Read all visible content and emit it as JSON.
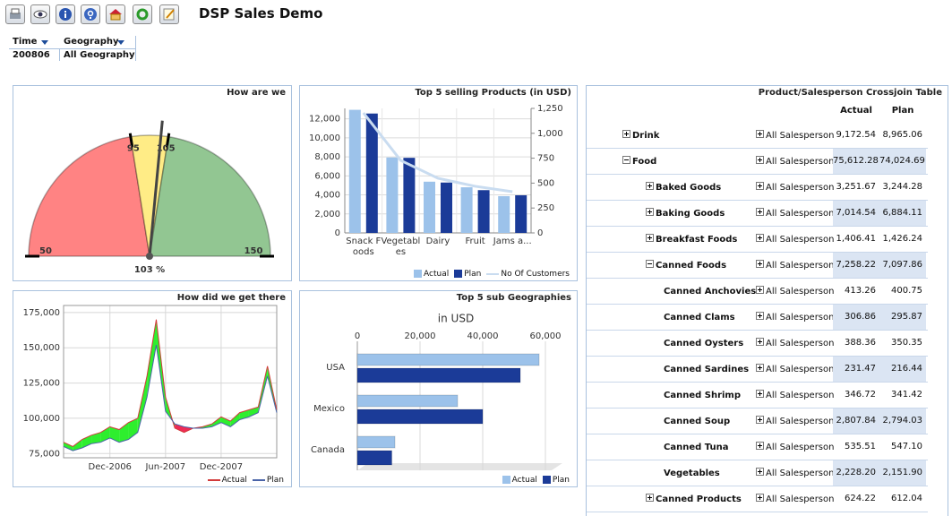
{
  "header": {
    "title": "DSP Sales Demo"
  },
  "filters": [
    {
      "label": "Time",
      "value": "200806"
    },
    {
      "label": "Geography",
      "value": "All Geography"
    }
  ],
  "chart_data": [
    {
      "type": "gauge",
      "title": "How are we",
      "range": [
        50,
        150
      ],
      "value": 103,
      "value_label": "103 %",
      "ticks": [
        50,
        95,
        105,
        150
      ],
      "bands": [
        {
          "from": 50,
          "to": 95,
          "color": "#ff8383"
        },
        {
          "from": 95,
          "to": 105,
          "color": "#ffec86"
        },
        {
          "from": 105,
          "to": 150,
          "color": "#92c692"
        }
      ]
    },
    {
      "type": "bar",
      "title": "Top 5 selling Products (in USD)",
      "categories": [
        "Snack Foods",
        "Vegetables",
        "Dairy",
        "Fruit",
        "Jams a..."
      ],
      "series": [
        {
          "name": "Actual",
          "color": "#9cc2ea",
          "values": [
            12950,
            7940,
            5390,
            4800,
            3870
          ]
        },
        {
          "name": "Plan",
          "color": "#1b3b98",
          "values": [
            12560,
            7900,
            5300,
            4500,
            3960
          ]
        },
        {
          "name": "No Of Customers",
          "color": "#c9dcf0",
          "type": "line",
          "axis": "y2",
          "values": [
            1205,
            728,
            549,
            468,
            414
          ]
        }
      ],
      "ylim": [
        0,
        13100
      ],
      "yticks": [
        0,
        {
          "value": 2000,
          "label": "2,000"
        },
        {
          "value": 4000,
          "label": "4,000"
        },
        {
          "value": 6000,
          "label": "6,000"
        },
        {
          "value": 8000,
          "label": "8,000"
        },
        {
          "value": 10000,
          "label": "10,000"
        },
        {
          "value": 12000,
          "label": "12,000"
        }
      ],
      "y2lim": [
        0,
        1250
      ],
      "y2ticks": [
        0,
        250,
        500,
        750,
        {
          "value": 1000,
          "label": "1,000"
        },
        {
          "value": 1250,
          "label": "1,250"
        }
      ],
      "grid": true,
      "legend": "bottom-right"
    },
    {
      "type": "line",
      "title": "How did we get there",
      "categories": [
        null,
        null,
        null,
        null,
        null,
        "Dec-2006",
        null,
        null,
        null,
        null,
        null,
        "Jun-2007",
        null,
        null,
        null,
        null,
        null,
        "Dec-2007",
        null,
        null,
        null,
        null,
        null,
        null
      ],
      "series": [
        {
          "name": "Actual",
          "color": "#d23a3a",
          "values": [
            83000,
            80000,
            85000,
            88000,
            90000,
            94000,
            92000,
            97000,
            100000,
            130000,
            170000,
            115000,
            93000,
            90000,
            93000,
            94000,
            96000,
            101000,
            98000,
            104000,
            106000,
            108000,
            137000,
            106000
          ]
        },
        {
          "name": "Plan",
          "color": "#4a64a8",
          "values": [
            80000,
            77000,
            79000,
            82000,
            83000,
            86000,
            83000,
            85000,
            90000,
            115000,
            152000,
            105000,
            96000,
            94000,
            93000,
            93000,
            94000,
            97000,
            94000,
            99000,
            101000,
            104000,
            130000,
            104000
          ]
        }
      ],
      "above_color": "#2eee2e",
      "below_color": "#ee2a55",
      "ylim": [
        72000,
        180000
      ],
      "yticks": [
        {
          "value": 75000,
          "label": "75,000"
        },
        {
          "value": 100000,
          "label": "100,000"
        },
        {
          "value": 125000,
          "label": "125,000"
        },
        {
          "value": 150000,
          "label": "150,000"
        },
        {
          "value": 175000,
          "label": "175,000"
        }
      ],
      "grid": true,
      "legend": "bottom-right"
    },
    {
      "type": "hbar",
      "title": "Top 5 sub Geographies",
      "subtitle": "in USD",
      "categories": [
        "USA",
        "Mexico",
        "Canada"
      ],
      "series": [
        {
          "name": "Actual",
          "color": "#9cc2ea",
          "values": [
            58000,
            32000,
            12000
          ]
        },
        {
          "name": "Plan",
          "color": "#1b3b98",
          "values": [
            52000,
            40000,
            11000
          ]
        }
      ],
      "xlim": [
        0,
        62000
      ],
      "xticks": [
        0,
        {
          "value": 20000,
          "label": "20,000"
        },
        {
          "value": 40000,
          "label": "40,000"
        },
        {
          "value": 60000,
          "label": "60,000"
        }
      ],
      "grid": true,
      "legend": "bottom-right"
    }
  ],
  "table": {
    "title": "Product/Salesperson Crossjoin Table",
    "columns": [
      "Actual",
      "Plan"
    ],
    "rows": [
      {
        "label": "Drink",
        "salesperson": "All Salesperson",
        "actual": "9,172.54",
        "plan": "8,965.06"
      },
      {
        "label": "Food",
        "salesperson": "All Salesperson",
        "actual": "75,612.28",
        "plan": "74,024.69",
        "children": [
          {
            "label": "Baked Goods",
            "salesperson": "All Salesperson",
            "actual": "3,251.67",
            "plan": "3,244.28"
          },
          {
            "label": "Baking Goods",
            "salesperson": "All Salesperson",
            "actual": "7,014.54",
            "plan": "6,884.11"
          },
          {
            "label": "Breakfast Foods",
            "salesperson": "All Salesperson",
            "actual": "1,406.41",
            "plan": "1,426.24"
          },
          {
            "label": "Canned Foods",
            "salesperson": "All Salesperson",
            "actual": "7,258.22",
            "plan": "7,097.86",
            "children": [
              {
                "label": "Canned Anchovies",
                "salesperson": "All Salesperson",
                "actual": "413.26",
                "plan": "400.75"
              },
              {
                "label": "Canned Clams",
                "salesperson": "All Salesperson",
                "actual": "306.86",
                "plan": "295.87"
              },
              {
                "label": "Canned Oysters",
                "salesperson": "All Salesperson",
                "actual": "388.36",
                "plan": "350.35"
              },
              {
                "label": "Canned Sardines",
                "salesperson": "All Salesperson",
                "actual": "231.47",
                "plan": "216.44"
              },
              {
                "label": "Canned Shrimp",
                "salesperson": "All Salesperson",
                "actual": "346.72",
                "plan": "341.42"
              },
              {
                "label": "Canned Soup",
                "salesperson": "All Salesperson",
                "actual": "2,807.84",
                "plan": "2,794.03"
              },
              {
                "label": "Canned Tuna",
                "salesperson": "All Salesperson",
                "actual": "535.51",
                "plan": "547.10"
              },
              {
                "label": "Vegetables",
                "salesperson": "All Salesperson",
                "actual": "2,228.20",
                "plan": "2,151.90"
              }
            ]
          },
          {
            "label": "Canned Products",
            "salesperson": "All Salesperson",
            "actual": "624.22",
            "plan": "612.04"
          }
        ]
      }
    ]
  }
}
